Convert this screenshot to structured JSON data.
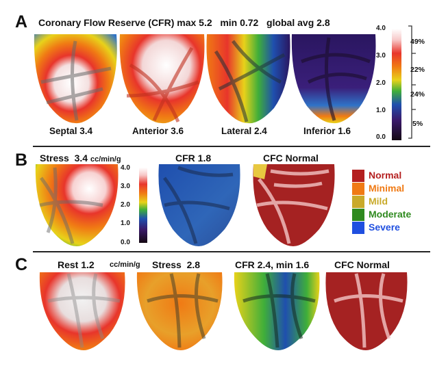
{
  "panelA": {
    "letter": "A",
    "title_prefix": "Coronary Flow Reserve (CFR)",
    "max_text": "max 5.2",
    "min_text": "min 0.72",
    "avg_text": "global avg 2.8",
    "views": [
      {
        "label": "Septal 3.4"
      },
      {
        "label": "Anterior 3.6"
      },
      {
        "label": "Lateral 2.4"
      },
      {
        "label": "Inferior 1.6"
      }
    ],
    "scale_ticks": [
      "4.0",
      "3.0",
      "2.0",
      "1.0",
      "0.0"
    ],
    "percentages": [
      "49%",
      "22%",
      "24%",
      "5%"
    ]
  },
  "panelB": {
    "letter": "B",
    "stress_label": "Stress",
    "stress_value": "3.4",
    "units": "cc/min/g",
    "scale_ticks": [
      "4.0",
      "3.0",
      "2.0",
      "1.0",
      "0.0"
    ],
    "cfr_label": "CFR 1.8",
    "cfc_label": "CFC Normal",
    "legend": [
      {
        "name": "Normal",
        "color": "#b41f1f"
      },
      {
        "name": "Minimal",
        "color": "#f07a14"
      },
      {
        "name": "Mild",
        "color": "#c9aa2a"
      },
      {
        "name": "Moderate",
        "color": "#2f8a1f"
      },
      {
        "name": "Severe",
        "color": "#1f4fe0"
      }
    ]
  },
  "panelC": {
    "letter": "C",
    "rest_label": "Rest 1.2",
    "units": "cc/min/g",
    "stress_label": "Stress  2.8",
    "cfr_label": "CFR 2.4, min 1.6",
    "cfc_label": "CFC Normal"
  },
  "colors": {
    "normal_red": "#a52222",
    "scale_top": "#ffffff",
    "scale_bottom": "#1a0a1a"
  }
}
